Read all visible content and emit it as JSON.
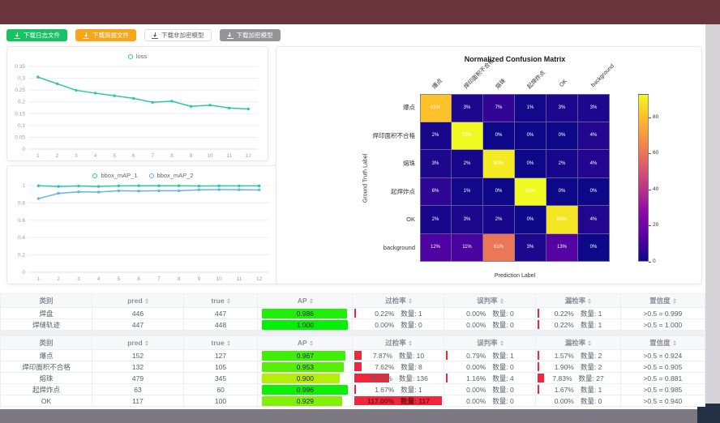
{
  "toolbar": {
    "buttons": [
      {
        "label": "下载日志文件",
        "variant": "success",
        "icon": "download-icon"
      },
      {
        "label": "下载简报文件",
        "variant": "warning",
        "icon": "download-icon"
      },
      {
        "label": "下载非加密模型",
        "variant": "plain",
        "icon": "download-icon"
      },
      {
        "label": "下载加密模型",
        "variant": "info",
        "icon": "download-icon"
      }
    ]
  },
  "colors": {
    "accent_teal": "#2ec7a6",
    "accent_blue": "#63b2f2",
    "bar_red": "#f0273a",
    "grid_line": "#ecedf2",
    "axis_text": "#9aa0ab"
  },
  "chart_data": [
    {
      "type": "line",
      "name": "loss-chart",
      "x": [
        1,
        2,
        3,
        4,
        5,
        6,
        7,
        8,
        9,
        10,
        11,
        12
      ],
      "series": [
        {
          "name": "loss",
          "color": "#2ec7a6",
          "values": [
            0.305,
            0.277,
            0.249,
            0.237,
            0.226,
            0.215,
            0.198,
            0.203,
            0.181,
            0.186,
            0.174,
            0.17
          ]
        }
      ],
      "ylim": [
        0,
        0.35
      ],
      "yticks": [
        0,
        0.05,
        0.1,
        0.15,
        0.2,
        0.25,
        0.3,
        0.35
      ],
      "ytick_labels": [
        "0",
        "0.05",
        "0.1",
        "0.15",
        "0.2",
        "0.25",
        "0.3",
        "0.35"
      ],
      "legend_position": "top",
      "grid": true
    },
    {
      "type": "line",
      "name": "map-chart",
      "x": [
        1,
        2,
        3,
        4,
        5,
        6,
        7,
        8,
        9,
        10,
        11,
        12
      ],
      "series": [
        {
          "name": "bbox_mAP_1",
          "color": "#2ec7a6",
          "values": [
            0.998,
            0.99,
            0.995,
            0.99,
            0.997,
            0.998,
            0.998,
            0.998,
            0.995,
            0.997,
            0.996,
            0.997
          ]
        },
        {
          "name": "bbox_mAP_2",
          "color": "#63b2f2",
          "values": [
            0.85,
            0.91,
            0.928,
            0.925,
            0.94,
            0.937,
            0.94,
            0.94,
            0.951,
            0.953,
            0.952,
            0.95
          ]
        }
      ],
      "ylim": [
        0,
        1
      ],
      "yticks": [
        0,
        0.2,
        0.4,
        0.6,
        0.8,
        1
      ],
      "ytick_labels": [
        "0",
        "0.2",
        "0.4",
        "0.6",
        "0.8",
        "1"
      ],
      "legend_position": "top",
      "grid": true
    },
    {
      "type": "heatmap",
      "name": "confusion-matrix",
      "title": "Normalized Confusion Matrix",
      "xlabel": "Prediction Label",
      "ylabel": "Ground Truth Label",
      "classes": [
        "爆点",
        "焊印面积不合格",
        "熔珠",
        "起焊炸点",
        "OK",
        "background"
      ],
      "rows": [
        [
          81,
          3,
          7,
          1,
          3,
          3
        ],
        [
          2,
          93,
          0,
          0,
          0,
          4
        ],
        [
          3,
          2,
          90,
          0,
          2,
          4
        ],
        [
          6,
          1,
          0,
          93,
          0,
          0
        ],
        [
          2,
          3,
          2,
          0,
          89,
          4
        ],
        [
          12,
          11,
          61,
          3,
          13,
          0
        ]
      ],
      "unit": "%",
      "vmax": 93,
      "colorbar_ticks": [
        0,
        20,
        40,
        60,
        80
      ],
      "colormap": "plasma"
    }
  ],
  "tables": [
    {
      "count_label": "数量:",
      "headers": [
        {
          "label": "类别",
          "sortable": false
        },
        {
          "label": "pred",
          "sortable": true
        },
        {
          "label": "true",
          "sortable": true
        },
        {
          "label": "AP",
          "sortable": true
        },
        {
          "label": "过检率",
          "sortable": true
        },
        {
          "label": "误判率",
          "sortable": true
        },
        {
          "label": "漏检率",
          "sortable": true
        },
        {
          "label": "置信度",
          "sortable": true
        }
      ],
      "rows": [
        {
          "class": "焊盘",
          "pred": 446,
          "true": 447,
          "ap": 0.986,
          "overkill": {
            "pct": 0.22,
            "text": "0.22%",
            "count": 1
          },
          "misjudge": {
            "pct": 0.0,
            "text": "0.00%",
            "count": 0
          },
          "miss": {
            "pct": 0.22,
            "text": "0.22%",
            "count": 1
          },
          "confidence": ">0.5 = 0.999"
        },
        {
          "class": "焊缝轨迹",
          "pred": 447,
          "true": 448,
          "ap": 1.0,
          "overkill": {
            "pct": 0.0,
            "text": "0.00%",
            "count": 0
          },
          "misjudge": {
            "pct": 0.0,
            "text": "0.00%",
            "count": 0
          },
          "miss": {
            "pct": 0.22,
            "text": "0.22%",
            "count": 1
          },
          "confidence": ">0.5 = 1.000"
        }
      ]
    },
    {
      "count_label": "数量:",
      "headers": [
        {
          "label": "类别",
          "sortable": false
        },
        {
          "label": "pred",
          "sortable": true
        },
        {
          "label": "true",
          "sortable": true
        },
        {
          "label": "AP",
          "sortable": true
        },
        {
          "label": "过检率",
          "sortable": true
        },
        {
          "label": "误判率",
          "sortable": true
        },
        {
          "label": "漏检率",
          "sortable": true
        },
        {
          "label": "置信度",
          "sortable": true
        }
      ],
      "rows": [
        {
          "class": "爆点",
          "pred": 152,
          "true": 127,
          "ap": 0.967,
          "overkill": {
            "pct": 7.87,
            "text": "7.87%",
            "count": 10
          },
          "misjudge": {
            "pct": 0.79,
            "text": "0.79%",
            "count": 1
          },
          "miss": {
            "pct": 1.57,
            "text": "1.57%",
            "count": 2
          },
          "confidence": ">0.5 = 0.924"
        },
        {
          "class": "焊印面积不合格",
          "pred": 132,
          "true": 105,
          "ap": 0.953,
          "overkill": {
            "pct": 7.62,
            "text": "7.62%",
            "count": 8
          },
          "misjudge": {
            "pct": 0.0,
            "text": "0.00%",
            "count": 0
          },
          "miss": {
            "pct": 1.9,
            "text": "1.90%",
            "count": 2
          },
          "confidence": ">0.5 = 0.905"
        },
        {
          "class": "熔珠",
          "pred": 479,
          "true": 345,
          "ap": 0.9,
          "overkill": {
            "pct": 39.42,
            "text": "39.42%",
            "count": 136
          },
          "misjudge": {
            "pct": 1.16,
            "text": "1.16%",
            "count": 4
          },
          "miss": {
            "pct": 7.83,
            "text": "7.83%",
            "count": 27
          },
          "confidence": ">0.5 = 0.881"
        },
        {
          "class": "起焊炸点",
          "pred": 63,
          "true": 60,
          "ap": 0.996,
          "overkill": {
            "pct": 1.67,
            "text": "1.67%",
            "count": 1
          },
          "misjudge": {
            "pct": 0.0,
            "text": "0.00%",
            "count": 0
          },
          "miss": {
            "pct": 1.67,
            "text": "1.67%",
            "count": 1
          },
          "confidence": ">0.5 = 0.985"
        },
        {
          "class": "OK",
          "pred": 117,
          "true": 100,
          "ap": 0.929,
          "overkill": {
            "pct": 117.0,
            "text": "117.00%",
            "count": 117
          },
          "misjudge": {
            "pct": 0.0,
            "text": "0.00%",
            "count": 0
          },
          "miss": {
            "pct": 0.0,
            "text": "0.00%",
            "count": 0
          },
          "confidence": ">0.5 = 0.940"
        }
      ]
    }
  ]
}
